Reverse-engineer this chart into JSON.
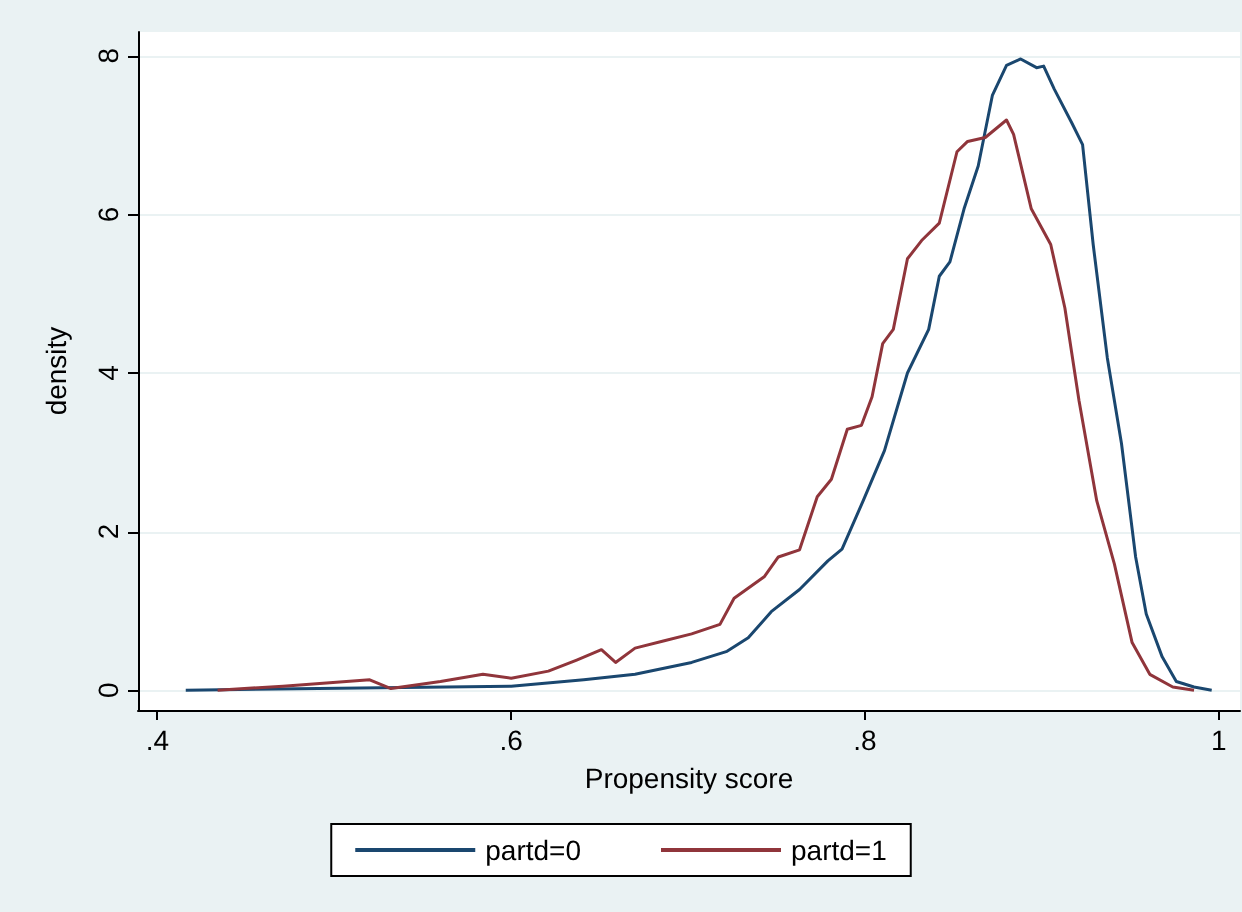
{
  "chart_data": {
    "type": "line",
    "xlabel": "Propensity score",
    "ylabel": "density",
    "xlim": [
      0.389,
      1.012
    ],
    "xticks": [
      {
        "value": 0.4,
        "label": ".4"
      },
      {
        "value": 0.6,
        "label": ".6"
      },
      {
        "value": 0.8,
        "label": ".8"
      },
      1
    ],
    "ylim": [
      -0.25,
      8.3
    ],
    "yticks": [
      0,
      2,
      4,
      6,
      8
    ],
    "grid": "y",
    "legend": "bottom",
    "marker": "none",
    "line_style": "solid",
    "series": [
      {
        "name": "partd=0",
        "color": "#1a476f",
        "x": [
          0.416,
          0.6,
          0.641,
          0.67,
          0.702,
          0.722,
          0.734,
          0.747,
          0.763,
          0.779,
          0.787,
          0.799,
          0.811,
          0.824,
          0.836,
          0.842,
          0.848,
          0.856,
          0.864,
          0.872,
          0.88,
          0.888,
          0.897,
          0.901,
          0.907,
          0.917,
          0.923,
          0.929,
          0.937,
          0.945,
          0.953,
          0.959,
          0.968,
          0.976,
          0.986,
          0.996
        ],
        "values": [
          0,
          0.05,
          0.13,
          0.2,
          0.35,
          0.49,
          0.66,
          0.99,
          1.27,
          1.63,
          1.78,
          2.39,
          3.02,
          4.0,
          4.55,
          5.22,
          5.4,
          6.07,
          6.61,
          7.5,
          7.88,
          7.96,
          7.85,
          7.87,
          7.58,
          7.15,
          6.88,
          5.62,
          4.19,
          3.11,
          1.68,
          0.96,
          0.42,
          0.11,
          0.04,
          0
        ]
      },
      {
        "name": "partd=1",
        "color": "#90353b",
        "x": [
          0.434,
          0.471,
          0.52,
          0.532,
          0.56,
          0.584,
          0.6,
          0.621,
          0.637,
          0.651,
          0.659,
          0.67,
          0.686,
          0.702,
          0.718,
          0.726,
          0.743,
          0.751,
          0.763,
          0.773,
          0.781,
          0.79,
          0.798,
          0.804,
          0.81,
          0.816,
          0.824,
          0.832,
          0.842,
          0.852,
          0.858,
          0.868,
          0.88,
          0.884,
          0.894,
          0.905,
          0.913,
          0.921,
          0.931,
          0.941,
          0.951,
          0.961,
          0.974,
          0.986
        ],
        "values": [
          0,
          0.05,
          0.13,
          0.02,
          0.11,
          0.2,
          0.15,
          0.24,
          0.38,
          0.51,
          0.35,
          0.53,
          0.62,
          0.71,
          0.83,
          1.16,
          1.43,
          1.68,
          1.77,
          2.44,
          2.66,
          3.29,
          3.34,
          3.7,
          4.37,
          4.55,
          5.44,
          5.67,
          5.89,
          6.79,
          6.92,
          6.97,
          7.19,
          7.01,
          6.07,
          5.62,
          4.82,
          3.65,
          2.39,
          1.59,
          0.6,
          0.2,
          0.04,
          0
        ]
      }
    ]
  }
}
